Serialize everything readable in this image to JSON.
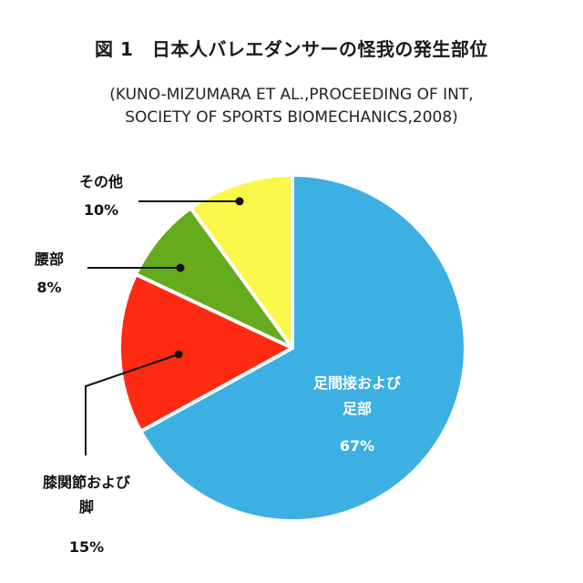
{
  "title": "図 1　日本人バレエダンサーの怪我の発生部位",
  "subtitle": {
    "line1": "(KUNO-MIZUMARA ET AL.,PROCEEDING OF INT,",
    "line2": "SOCIETY OF SPORTS BIOMECHANICS,2008)"
  },
  "chart_data": {
    "type": "pie",
    "title": "図 1　日本人バレエダンサーの怪我の発生部位",
    "subtitle": "(KUNO-MIZUMARA ET AL.,PROCEEDING OF INT, SOCIETY OF SPORTS BIOMECHANICS,2008)",
    "start": "12 o'clock",
    "direction": "clockwise",
    "slices": [
      {
        "name_lines": [
          "足間接および",
          "足部"
        ],
        "value": 67,
        "label": "67%",
        "color": "#3cb0e3",
        "label_style": "inside"
      },
      {
        "name_lines": [
          "膝関節および",
          "脚"
        ],
        "value": 15,
        "label": "15%",
        "color": "#ff2a12",
        "label_style": "leader"
      },
      {
        "name_lines": [
          "腰部"
        ],
        "value": 8,
        "label": "8%",
        "color": "#66aa1e",
        "label_style": "leader"
      },
      {
        "name_lines": [
          "その他"
        ],
        "value": 10,
        "label": "10%",
        "color": "#f9f74a",
        "label_style": "leader"
      }
    ]
  }
}
